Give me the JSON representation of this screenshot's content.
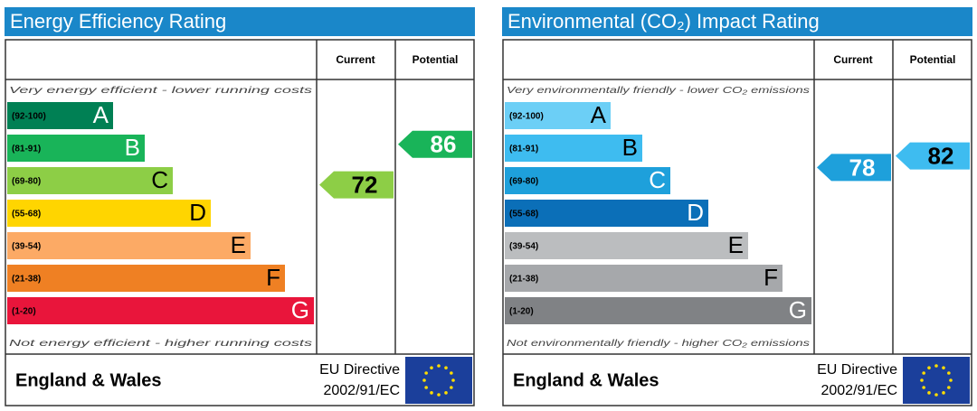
{
  "chart_data": [
    {
      "type": "epc",
      "title": "Energy Efficiency Rating",
      "header_current": "Current",
      "header_potential": "Potential",
      "top_note": "Very energy efficient - lower running costs",
      "bottom_note": "Not energy efficient - higher running costs",
      "bands": [
        {
          "range": "(92-100)",
          "letter": "A",
          "color": "#008054"
        },
        {
          "range": "(81-91)",
          "letter": "B",
          "color": "#19b459"
        },
        {
          "range": "(69-80)",
          "letter": "C",
          "color": "#8dce46"
        },
        {
          "range": "(55-68)",
          "letter": "D",
          "color": "#ffd500"
        },
        {
          "range": "(39-54)",
          "letter": "E",
          "color": "#fcaa65"
        },
        {
          "range": "(21-38)",
          "letter": "F",
          "color": "#ef8023"
        },
        {
          "range": "(1-20)",
          "letter": "G",
          "color": "#e9153b"
        }
      ],
      "current": 72,
      "potential": 86,
      "region": "England & Wales",
      "directive_line1": "EU Directive",
      "directive_line2": "2002/91/EC"
    },
    {
      "type": "epc",
      "title": "Environmental (CO₂) Impact Rating",
      "header_current": "Current",
      "header_potential": "Potential",
      "top_note": "Very environmentally friendly - lower CO₂ emissions",
      "bottom_note": "Not environmentally friendly - higher CO₂ emissions",
      "bands": [
        {
          "range": "(92-100)",
          "letter": "A",
          "color": "#6ccff6"
        },
        {
          "range": "(81-91)",
          "letter": "B",
          "color": "#3ebcf0"
        },
        {
          "range": "(69-80)",
          "letter": "C",
          "color": "#1ea0db"
        },
        {
          "range": "(55-68)",
          "letter": "D",
          "color": "#0b6fb8"
        },
        {
          "range": "(39-54)",
          "letter": "E",
          "color": "#bbbdbf"
        },
        {
          "range": "(21-38)",
          "letter": "F",
          "color": "#a6a8ab"
        },
        {
          "range": "(1-20)",
          "letter": "G",
          "color": "#808285"
        }
      ],
      "current": 78,
      "potential": 82,
      "region": "England & Wales",
      "directive_line1": "EU Directive",
      "directive_line2": "2002/91/EC"
    }
  ]
}
